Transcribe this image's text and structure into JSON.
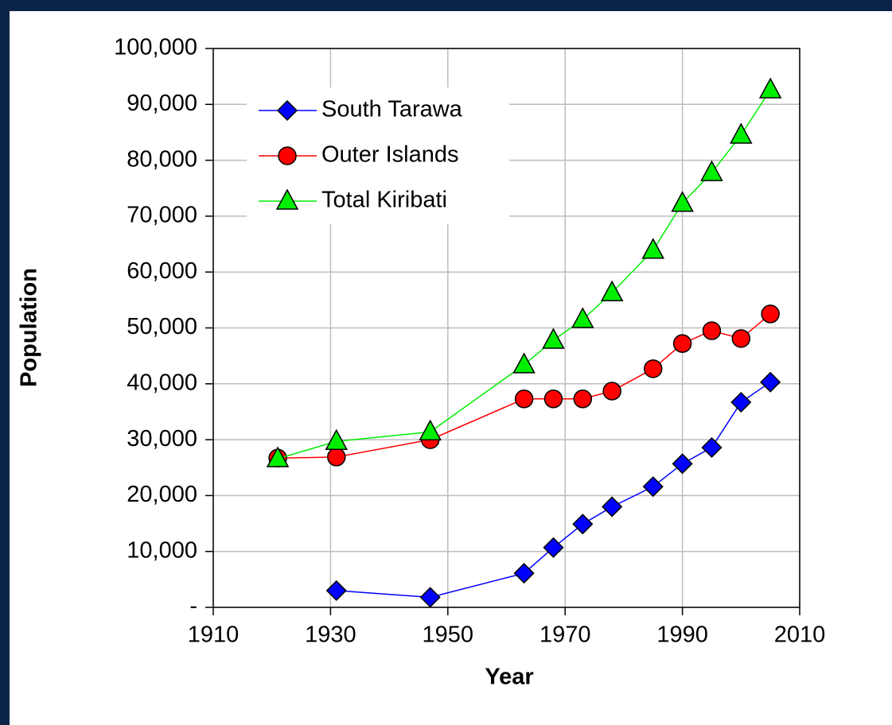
{
  "chart_data": {
    "type": "line",
    "xlabel": "Year",
    "ylabel": "Population",
    "x": [
      1921,
      1931,
      1947,
      1963,
      1968,
      1973,
      1978,
      1985,
      1990,
      1995,
      2000,
      2005
    ],
    "series": [
      {
        "name": "South Tarawa",
        "color": "#0000ff",
        "marker": "diamond",
        "values": [
          null,
          3000,
          1800,
          6100,
          10700,
          14900,
          18000,
          21600,
          25700,
          28600,
          36700,
          40300
        ]
      },
      {
        "name": "Outer Islands",
        "color": "#ff0000",
        "marker": "circle",
        "values": [
          26700,
          26900,
          30000,
          37300,
          37300,
          37300,
          38700,
          42700,
          47200,
          49500,
          48100,
          52500
        ]
      },
      {
        "name": "Total Kiribati",
        "color": "#00ee00",
        "marker": "triangle",
        "values": [
          26600,
          29700,
          31400,
          43400,
          47800,
          51500,
          56300,
          63900,
          72300,
          77800,
          84500,
          92600
        ]
      }
    ],
    "xlim": [
      1910,
      2010
    ],
    "xticks": [
      1910,
      1930,
      1950,
      1970,
      1990,
      2010
    ],
    "ylim": [
      0,
      100000
    ],
    "yticks": [
      {
        "value": 0,
        "label": "-"
      },
      {
        "value": 10000,
        "label": "10,000"
      },
      {
        "value": 20000,
        "label": "20,000"
      },
      {
        "value": 30000,
        "label": "30,000"
      },
      {
        "value": 40000,
        "label": "40,000"
      },
      {
        "value": 50000,
        "label": "50,000"
      },
      {
        "value": 60000,
        "label": "60,000"
      },
      {
        "value": 70000,
        "label": "70,000"
      },
      {
        "value": 80000,
        "label": "80,000"
      },
      {
        "value": 90000,
        "label": "90,000"
      },
      {
        "value": 100000,
        "label": "100,000"
      }
    ],
    "grid": true,
    "legend": "upper-left"
  }
}
